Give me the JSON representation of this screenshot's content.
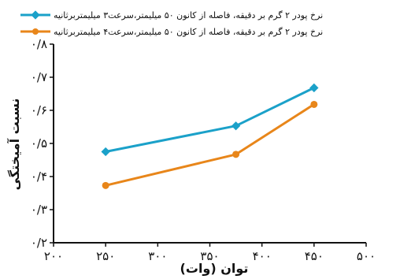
{
  "chart_data": {
    "type": "line",
    "xlabel": "توان (وات)",
    "ylabel": "نسبت آمیختگی",
    "xlim": [
      200,
      500
    ],
    "ylim": [
      0.2,
      0.8
    ],
    "x_ticks": [
      200,
      250,
      300,
      350,
      400,
      450,
      500
    ],
    "x_tick_labels": [
      "۲۰۰",
      "۲۵۰",
      "۳۰۰",
      "۳۵۰",
      "۴۰۰",
      "۴۵۰",
      "۵۰۰"
    ],
    "y_ticks": [
      0.2,
      0.3,
      0.4,
      0.5,
      0.6,
      0.7,
      0.8
    ],
    "y_tick_labels": [
      "۰/۲",
      "۰/۳",
      "۰/۴",
      "۰/۵",
      "۰/۶",
      "۰/۷",
      "۰/۸"
    ],
    "grid": false,
    "legend_position": "top",
    "series": [
      {
        "name": "نرخ پودر ۲ گرم بر دقیقه، فاصله از کانون ۵۰ میلیمتر،سرعت۳ میلیمتربرثانیه",
        "color": "#1ba1c9",
        "marker": "diamond",
        "x": [
          250,
          375,
          450
        ],
        "y": [
          0.475,
          0.553,
          0.668
        ]
      },
      {
        "name": "نرخ پودر ۲ گرم بر دقیقه، فاصله از کانون ۵۰ میلیمتر،سرعت۴ میلیمتربرثانیه",
        "color": "#e8861a",
        "marker": "circle",
        "x": [
          250,
          375,
          450
        ],
        "y": [
          0.373,
          0.467,
          0.618
        ]
      }
    ]
  }
}
